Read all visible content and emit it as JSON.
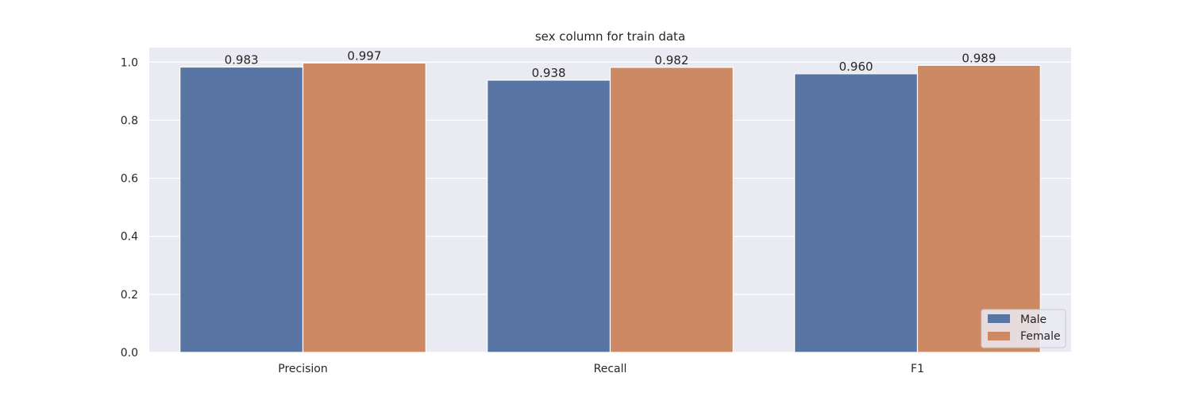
{
  "chart_data": {
    "type": "bar",
    "title": "sex column for train data",
    "xlabel": "",
    "ylabel": "",
    "categories": [
      "Precision",
      "Recall",
      "F1"
    ],
    "series": [
      {
        "name": "Male",
        "values": [
          0.983,
          0.938,
          0.96
        ],
        "labels": [
          "0.983",
          "0.938",
          "0.960"
        ]
      },
      {
        "name": "Female",
        "values": [
          0.997,
          0.982,
          0.989
        ],
        "labels": [
          "0.997",
          "0.982",
          "0.989"
        ]
      }
    ],
    "ylim": [
      0,
      1.0
    ],
    "yticks": [
      "0.0",
      "0.2",
      "0.4",
      "0.6",
      "0.8",
      "1.0"
    ],
    "grid": true,
    "legend_position": "bottom-right"
  },
  "colors": {
    "Male": "#5975a4",
    "Female": "#cc8963",
    "plot_background": "#eaeaf2",
    "grid": "#ffffff"
  }
}
